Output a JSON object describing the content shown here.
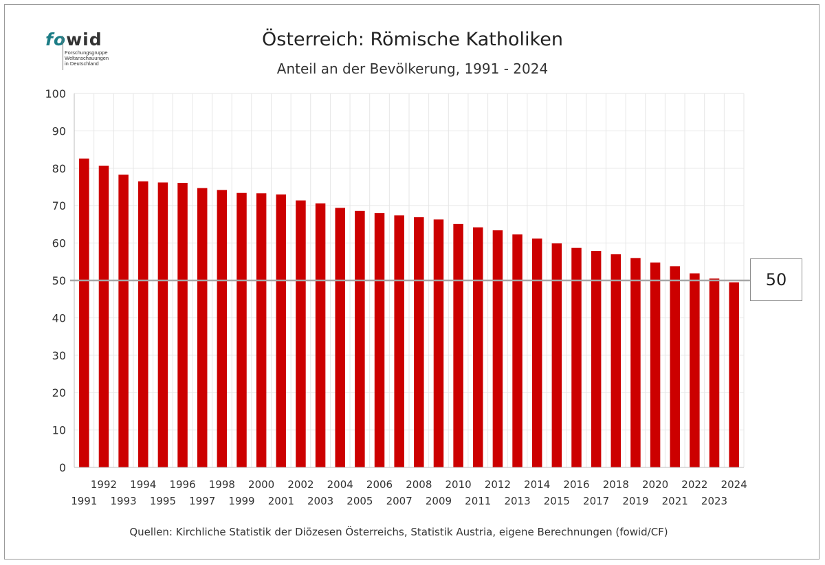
{
  "logo": {
    "word_fo": "fo",
    "word_wid": "wid",
    "subtitle_lines": [
      "Forschungsgruppe",
      "Weltanschauungen",
      "in Deutschland"
    ]
  },
  "source": "Quellen: Kirchliche Statistik der Diözesen Österreichs, Statistik Austria, eigene Berechnungen (fowid/CF)",
  "colors": {
    "bar": "#cc0000",
    "reference_line": "#a6a6a6",
    "grid": "#e6e6e6"
  },
  "chart_data": {
    "type": "bar",
    "title": "Österreich: Römische Katholiken",
    "subtitle": "Anteil an der Bevölkerung, 1991 - 2024",
    "xlabel": "",
    "ylabel": "",
    "ylim": [
      0,
      100
    ],
    "yticks": [
      0,
      10,
      20,
      30,
      40,
      50,
      60,
      70,
      80,
      90,
      100
    ],
    "grid": true,
    "legend": "none",
    "categories": [
      "1991",
      "1992",
      "1993",
      "1994",
      "1995",
      "1996",
      "1997",
      "1998",
      "1999",
      "2000",
      "2001",
      "2002",
      "2003",
      "2004",
      "2005",
      "2006",
      "2007",
      "2008",
      "2009",
      "2010",
      "2011",
      "2012",
      "2013",
      "2014",
      "2015",
      "2016",
      "2017",
      "2018",
      "2019",
      "2020",
      "2021",
      "2022",
      "2023",
      "2024"
    ],
    "values": [
      82.6,
      80.7,
      78.3,
      76.5,
      76.2,
      76.1,
      74.7,
      74.2,
      73.4,
      73.3,
      73.0,
      71.4,
      70.6,
      69.4,
      68.6,
      68.0,
      67.4,
      66.9,
      66.3,
      65.1,
      64.2,
      63.4,
      62.3,
      61.2,
      59.9,
      58.7,
      57.9,
      57.0,
      56.0,
      54.8,
      53.8,
      51.9,
      50.5,
      49.5
    ],
    "reference_line": {
      "value": 50,
      "label": "50"
    }
  }
}
